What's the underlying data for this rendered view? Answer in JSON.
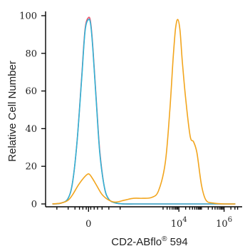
{
  "chart_data": {
    "type": "line",
    "title": "",
    "xlabel": "CD2-ABflo",
    "xlabel_superscript": "®",
    "xlabel_suffix": " 594",
    "ylabel": "Relative Cell Number",
    "x_scale": "biexponential (log10 of fluorescence intensity)",
    "xlim": [
      -1.9,
      6.8
    ],
    "ylim": [
      0,
      100
    ],
    "grid": false,
    "legend": "none",
    "x_ticks": [
      {
        "label": "0",
        "base": "",
        "exponent": "",
        "value": 0
      },
      {
        "label": "",
        "base": "10",
        "exponent": "4",
        "value": 4
      },
      {
        "label": "",
        "base": "10",
        "exponent": "6",
        "value": 6
      }
    ],
    "y_ticks": [
      {
        "label": "0",
        "value": 0
      },
      {
        "label": "20",
        "value": 20
      },
      {
        "label": "40",
        "value": 40
      },
      {
        "label": "60",
        "value": 60
      },
      {
        "label": "80",
        "value": 80
      },
      {
        "label": "100",
        "value": 100
      }
    ],
    "series": [
      {
        "color": "#e8546d",
        "x": [
          -1.6,
          -1.2,
          -0.9,
          -0.7,
          -0.5,
          -0.3,
          -0.15,
          0.0,
          0.1,
          0.2,
          0.35,
          0.5,
          0.7,
          0.9,
          1.2,
          1.6,
          2.0,
          2.5,
          3.0,
          3.5,
          4.0,
          4.5,
          5.0,
          5.5,
          6.0,
          6.5
        ],
        "values": [
          0,
          0.5,
          3,
          12,
          34,
          68,
          93,
          99,
          96,
          82,
          54,
          28,
          9,
          2.5,
          0.5,
          0,
          0,
          0,
          0,
          0,
          0,
          0,
          0,
          0,
          0,
          0
        ]
      },
      {
        "color": "#2fb4d6",
        "x": [
          -1.6,
          -1.2,
          -0.9,
          -0.7,
          -0.5,
          -0.3,
          -0.15,
          0.0,
          0.1,
          0.2,
          0.35,
          0.5,
          0.7,
          0.9,
          1.2,
          1.6,
          2.0,
          2.5,
          3.0,
          3.5,
          4.0,
          4.5,
          5.0,
          5.5,
          6.0,
          6.5
        ],
        "values": [
          0,
          0.5,
          3,
          12,
          34,
          67,
          92,
          98,
          95,
          81,
          53,
          27,
          9,
          2.5,
          0.5,
          0,
          0,
          0,
          0,
          0,
          0,
          0,
          0,
          0,
          0,
          0
        ]
      },
      {
        "color": "#f2a51d",
        "x": [
          -1.6,
          -1.2,
          -0.9,
          -0.7,
          -0.45,
          -0.2,
          0.0,
          0.15,
          0.35,
          0.6,
          0.9,
          1.2,
          1.6,
          2.0,
          2.4,
          2.8,
          3.1,
          3.4,
          3.6,
          3.75,
          3.85,
          3.95,
          4.05,
          4.15,
          4.3,
          4.5,
          4.65,
          4.8,
          5.0,
          5.2,
          5.5,
          6.0,
          6.5
        ],
        "values": [
          0,
          0.5,
          2,
          5,
          10,
          14,
          16,
          14,
          10,
          5,
          2,
          1,
          2,
          3,
          3,
          3.5,
          7,
          22,
          50,
          78,
          93,
          98,
          92,
          76,
          56,
          36,
          33,
          27,
          10,
          2,
          0.5,
          0,
          0
        ]
      }
    ]
  }
}
